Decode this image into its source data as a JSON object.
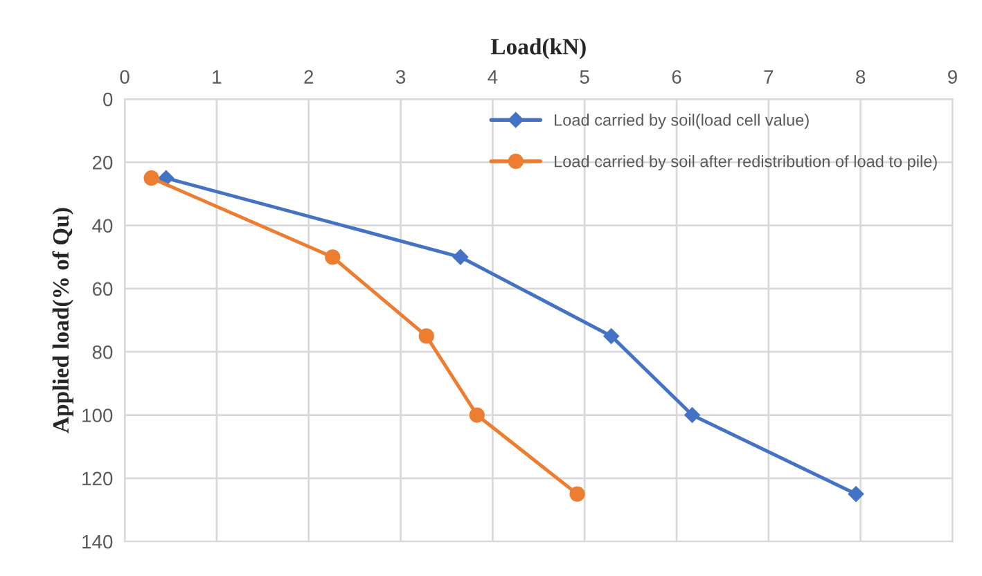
{
  "chart_data": {
    "type": "line",
    "xlabel": "Load(kN)",
    "ylabel": "Applied load(% of Qu)",
    "xlim": [
      0,
      9
    ],
    "xticks": [
      0,
      1,
      2,
      3,
      4,
      5,
      6,
      7,
      8,
      9
    ],
    "ylim": [
      140,
      0
    ],
    "yticks": [
      0,
      20,
      40,
      60,
      80,
      100,
      120,
      140
    ],
    "grid": true,
    "legend": "top right",
    "series": [
      {
        "name": "Load carried by soil(load cell value)",
        "color": "#4472c4",
        "marker": "diamond",
        "x": [
          0.45,
          3.65,
          5.29,
          6.17,
          7.95
        ],
        "values": [
          25,
          50,
          75,
          100,
          125
        ]
      },
      {
        "name": "Load carried by soil after redistribution of load to pile)",
        "color": "#ed7d31",
        "marker": "circle",
        "x": [
          0.29,
          2.26,
          3.28,
          3.83,
          4.92
        ],
        "values": [
          25,
          50,
          75,
          100,
          125
        ]
      }
    ]
  }
}
